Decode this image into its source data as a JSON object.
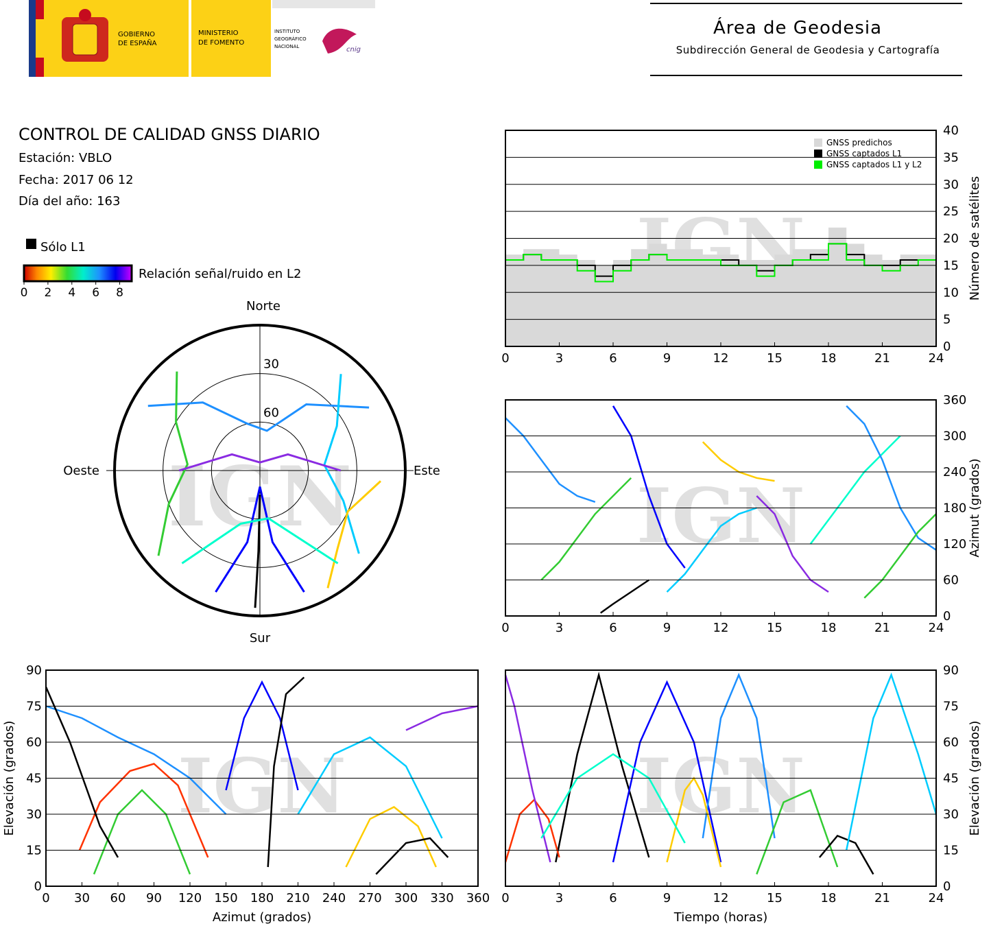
{
  "header": {
    "org1": [
      "GOBIERNO",
      "DE ESPAÑA"
    ],
    "org2": [
      "MINISTERIO",
      "DE FOMENTO"
    ],
    "org3": [
      "INSTITUTO",
      "GEOGRÁFICO",
      "NACIONAL"
    ],
    "org4": "cnig",
    "area": "Área de Geodesia",
    "subarea": "Subdirección General de Geodesia y Cartografía"
  },
  "info": {
    "title": "CONTROL DE CALIDAD GNSS DIARIO",
    "station": "Estación: VBLO",
    "date": "Fecha: 2017 06 12",
    "doy": "Día del año: 163"
  },
  "legend": {
    "l1_only": "Sólo L1",
    "l1_only_color": "#000000",
    "snr_label": "Relación señal/ruido en L2",
    "snr_ticks": [
      0,
      2,
      4,
      6,
      8
    ],
    "snr_lim": [
      0,
      9
    ]
  },
  "watermark": "IGN",
  "chart_data": [
    {
      "type": "polar",
      "directions": {
        "north": "Norte",
        "south": "Sur",
        "east": "Este",
        "west": "Oeste"
      },
      "rticks": [
        30,
        60
      ],
      "rlim": [
        0,
        90
      ],
      "tracks": [
        {
          "color": "#1e90ff",
          "az": [
            300,
            320,
            345,
            10,
            35,
            60
          ],
          "el": [
            10,
            35,
            60,
            65,
            40,
            12
          ]
        },
        {
          "color": "#33cc33",
          "az": [
            230,
            250,
            275,
            300,
            320
          ],
          "el": [
            8,
            30,
            45,
            30,
            10
          ]
        },
        {
          "color": "#0000ff",
          "az": [
            200,
            190,
            180,
            170,
            160
          ],
          "el": [
            10,
            45,
            80,
            45,
            10
          ]
        },
        {
          "color": "#00ccff",
          "az": [
            130,
            110,
            85,
            60,
            40
          ],
          "el": [
            10,
            35,
            50,
            35,
            12
          ]
        },
        {
          "color": "#000000",
          "az": [
            182,
            181,
            180
          ],
          "el": [
            5,
            40,
            75
          ]
        },
        {
          "color": "#ffcc00",
          "az": [
            150,
            135,
            115,
            95
          ],
          "el": [
            6,
            22,
            30,
            15
          ]
        },
        {
          "color": "#8a2be2",
          "az": [
            270,
            300,
            0,
            60,
            90
          ],
          "el": [
            40,
            70,
            85,
            70,
            40
          ]
        },
        {
          "color": "#00ffcc",
          "az": [
            220,
            200,
            170,
            140
          ],
          "el": [
            15,
            55,
            60,
            15
          ]
        }
      ]
    },
    {
      "type": "step",
      "y_label": "Número de satélites",
      "y_axis_side": "right",
      "grid": true,
      "xlim": [
        0,
        24
      ],
      "xticks": [
        0,
        3,
        6,
        9,
        12,
        15,
        18,
        21,
        24
      ],
      "ylim": [
        0,
        40
      ],
      "yticks": [
        0,
        5,
        10,
        15,
        20,
        25,
        30,
        35,
        40
      ],
      "x": [
        0,
        1,
        2,
        3,
        4,
        5,
        6,
        7,
        8,
        9,
        10,
        11,
        12,
        13,
        14,
        15,
        16,
        17,
        18,
        19,
        20,
        21,
        22,
        23,
        24
      ],
      "series": [
        {
          "name": "GNSS predichos",
          "color": "#d9d9d9",
          "fill": true,
          "values": [
            17,
            18,
            18,
            17,
            16,
            15,
            16,
            18,
            19,
            18,
            18,
            17,
            17,
            16,
            16,
            17,
            18,
            18,
            22,
            19,
            17,
            16,
            17,
            17,
            17
          ]
        },
        {
          "name": "GNSS captados L1",
          "color": "#000000",
          "fill": false,
          "values": [
            16,
            17,
            16,
            16,
            15,
            13,
            15,
            16,
            17,
            16,
            16,
            16,
            16,
            15,
            14,
            15,
            16,
            17,
            19,
            17,
            15,
            15,
            16,
            16,
            16
          ]
        },
        {
          "name": "GNSS captados L1 y L2",
          "color": "#00ee00",
          "fill": false,
          "values": [
            16,
            17,
            16,
            16,
            14,
            12,
            14,
            16,
            17,
            16,
            16,
            16,
            15,
            15,
            13,
            15,
            16,
            16,
            19,
            16,
            15,
            14,
            15,
            16,
            16
          ]
        }
      ]
    },
    {
      "type": "tracks",
      "y_label": "Azimut (grados)",
      "y_axis_side": "right",
      "grid": true,
      "xlim": [
        0,
        24
      ],
      "xticks": [
        0,
        3,
        6,
        9,
        12,
        15,
        18,
        21,
        24
      ],
      "ylim": [
        0,
        360
      ],
      "yticks": [
        0,
        60,
        120,
        180,
        240,
        300,
        360
      ],
      "tracks": [
        {
          "color": "#1e90ff",
          "x": [
            0,
            1,
            2,
            3,
            4,
            5
          ],
          "y": [
            330,
            300,
            260,
            220,
            200,
            190
          ]
        },
        {
          "color": "#33cc33",
          "x": [
            2,
            3,
            4,
            5,
            6,
            7
          ],
          "y": [
            60,
            90,
            130,
            170,
            200,
            230
          ]
        },
        {
          "color": "#0000ff",
          "x": [
            6,
            7,
            8,
            9,
            10
          ],
          "y": [
            350,
            300,
            200,
            120,
            80
          ]
        },
        {
          "color": "#00ccff",
          "x": [
            9,
            10,
            11,
            12,
            13,
            14
          ],
          "y": [
            40,
            70,
            110,
            150,
            170,
            180
          ]
        },
        {
          "color": "#000000",
          "x": [
            5.3,
            6,
            7,
            8
          ],
          "y": [
            5,
            20,
            40,
            60
          ]
        },
        {
          "color": "#ffcc00",
          "x": [
            11,
            12,
            13,
            14,
            15
          ],
          "y": [
            290,
            260,
            240,
            230,
            225
          ]
        },
        {
          "color": "#8a2be2",
          "x": [
            14,
            15,
            16,
            17,
            18
          ],
          "y": [
            200,
            170,
            100,
            60,
            40
          ]
        },
        {
          "color": "#00ffcc",
          "x": [
            17,
            18,
            19,
            20,
            21,
            22
          ],
          "y": [
            120,
            160,
            200,
            240,
            270,
            300
          ]
        },
        {
          "color": "#1e90ff",
          "x": [
            19,
            20,
            21,
            22,
            23,
            24
          ],
          "y": [
            350,
            320,
            260,
            180,
            130,
            110
          ]
        },
        {
          "color": "#33cc33",
          "x": [
            20,
            21,
            22,
            23,
            24
          ],
          "y": [
            30,
            60,
            100,
            140,
            170
          ]
        }
      ]
    },
    {
      "type": "tracks",
      "x_label": "Azimut (grados)",
      "y_label": "Elevación (grados)",
      "y_axis_side": "left",
      "grid": true,
      "xlim": [
        0,
        360
      ],
      "xticks": [
        0,
        30,
        60,
        90,
        120,
        150,
        180,
        210,
        240,
        270,
        300,
        330,
        360
      ],
      "ylim": [
        0,
        90
      ],
      "yticks": [
        0,
        15,
        30,
        45,
        60,
        75,
        90
      ],
      "tracks": [
        {
          "color": "#ff3300",
          "x": [
            28,
            45,
            70,
            90,
            110,
            135
          ],
          "y": [
            15,
            35,
            48,
            51,
            42,
            12
          ]
        },
        {
          "color": "#33cc33",
          "x": [
            40,
            60,
            80,
            100,
            120
          ],
          "y": [
            5,
            30,
            40,
            30,
            5
          ]
        },
        {
          "color": "#1e90ff",
          "x": [
            0,
            30,
            60,
            90,
            120,
            150
          ],
          "y": [
            75,
            70,
            62,
            55,
            45,
            30
          ]
        },
        {
          "color": "#0000ff",
          "x": [
            150,
            165,
            180,
            195,
            210
          ],
          "y": [
            40,
            70,
            85,
            70,
            40
          ]
        },
        {
          "color": "#000000",
          "x": [
            185,
            190,
            200,
            215
          ],
          "y": [
            8,
            50,
            80,
            87
          ]
        },
        {
          "color": "#000000",
          "x": [
            0,
            20,
            45,
            60
          ],
          "y": [
            83,
            60,
            25,
            12
          ]
        },
        {
          "color": "#ffcc00",
          "x": [
            250,
            270,
            290,
            310,
            325
          ],
          "y": [
            8,
            28,
            33,
            25,
            8
          ]
        },
        {
          "color": "#00ccff",
          "x": [
            210,
            240,
            270,
            300,
            330
          ],
          "y": [
            30,
            55,
            62,
            50,
            20
          ]
        },
        {
          "color": "#000000",
          "x": [
            275,
            300,
            320,
            335
          ],
          "y": [
            5,
            18,
            20,
            12
          ]
        },
        {
          "color": "#8a2be2",
          "x": [
            300,
            330,
            360
          ],
          "y": [
            65,
            72,
            75
          ]
        }
      ]
    },
    {
      "type": "tracks",
      "x_label": "Tiempo (horas)",
      "y_label": "Elevación (grados)",
      "y_axis_side": "right",
      "grid": true,
      "xlim": [
        0,
        24
      ],
      "xticks": [
        0,
        3,
        6,
        9,
        12,
        15,
        18,
        21,
        24
      ],
      "ylim": [
        0,
        90
      ],
      "yticks": [
        0,
        15,
        30,
        45,
        60,
        75,
        90
      ],
      "tracks": [
        {
          "color": "#000000",
          "x": [
            2.8,
            4,
            5.2,
            6.5,
            8
          ],
          "y": [
            10,
            55,
            88,
            50,
            12
          ]
        },
        {
          "color": "#ff3300",
          "x": [
            0,
            0.8,
            1.6,
            2.4,
            3
          ],
          "y": [
            10,
            30,
            36,
            28,
            12
          ]
        },
        {
          "color": "#8a2be2",
          "x": [
            0,
            0.5,
            1.5,
            2.5
          ],
          "y": [
            88,
            75,
            40,
            10
          ]
        },
        {
          "color": "#0000ff",
          "x": [
            6,
            7.5,
            9,
            10.5,
            12
          ],
          "y": [
            10,
            60,
            85,
            60,
            10
          ]
        },
        {
          "color": "#1e90ff",
          "x": [
            11,
            12,
            13,
            14,
            15
          ],
          "y": [
            20,
            70,
            88,
            70,
            20
          ]
        },
        {
          "color": "#ffcc00",
          "x": [
            9,
            10,
            10.5,
            11,
            12
          ],
          "y": [
            10,
            40,
            45,
            38,
            8
          ]
        },
        {
          "color": "#33cc33",
          "x": [
            14,
            15.5,
            17,
            18.5
          ],
          "y": [
            5,
            35,
            40,
            8
          ]
        },
        {
          "color": "#000000",
          "x": [
            17.5,
            18.5,
            19.5,
            20.5
          ],
          "y": [
            12,
            21,
            18,
            5
          ]
        },
        {
          "color": "#00ccff",
          "x": [
            19,
            20.5,
            21.5,
            23,
            24
          ],
          "y": [
            15,
            70,
            88,
            55,
            30
          ]
        },
        {
          "color": "#00ffcc",
          "x": [
            2,
            4,
            6,
            8,
            10
          ],
          "y": [
            20,
            45,
            55,
            45,
            18
          ]
        }
      ]
    }
  ]
}
